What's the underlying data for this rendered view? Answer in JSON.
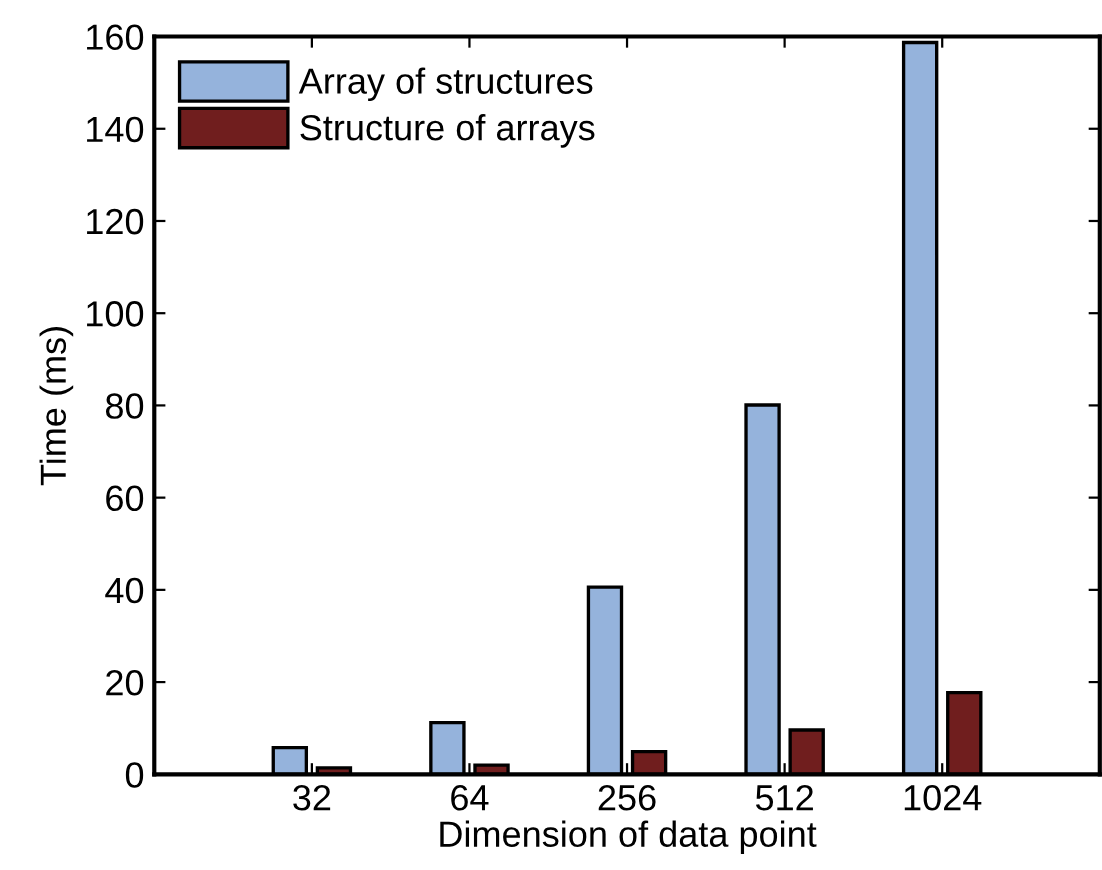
{
  "chart_data": {
    "type": "bar",
    "xlabel": "Dimension of data point",
    "ylabel": "Time (ms)",
    "categories": [
      "32",
      "64",
      "256",
      "512",
      "1024"
    ],
    "series": [
      {
        "name": "Array of structures",
        "color": "#95b3dc",
        "values": [
          5.8,
          11.2,
          40.6,
          80.1,
          158.7
        ]
      },
      {
        "name": "Structure of arrays",
        "color": "#701e1e",
        "values": [
          1.4,
          2.0,
          4.9,
          9.6,
          17.7
        ]
      }
    ],
    "ylim": [
      0,
      160
    ],
    "yticks": [
      0,
      20,
      40,
      60,
      80,
      100,
      120,
      140,
      160
    ],
    "legend": "top left",
    "grid": false
  }
}
